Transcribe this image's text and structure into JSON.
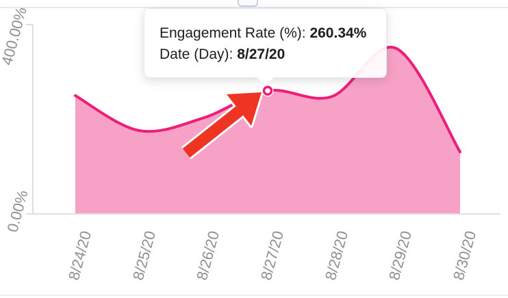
{
  "tooltip": {
    "metric_label": "Engagement Rate (%): ",
    "metric_value": "260.34%",
    "date_label": "Date (Day): ",
    "date_value": "8/27/20"
  },
  "chart_data": {
    "type": "area",
    "title": "",
    "xlabel": "Date (Day)",
    "ylabel": "Engagement Rate (%)",
    "x_labels": [
      "8/24/20",
      "8/25/20",
      "8/26/20",
      "8/27/20",
      "8/28/20",
      "8/29/20",
      "8/30/20"
    ],
    "series": [
      {
        "name": "Engagement Rate (%)",
        "values": [
          250,
          176,
          203,
          260.34,
          248,
          350,
          131
        ]
      }
    ],
    "ylim": [
      0,
      400
    ],
    "y_tick_labels": [
      {
        "label": "400.00%",
        "value": 400
      },
      {
        "label": "0.00%",
        "value": 0
      }
    ],
    "grid": false,
    "legend": "none",
    "highlighted_point": {
      "date": "8/27/20",
      "value": 260.34,
      "label": "260.34%"
    },
    "colors": {
      "line": "#ed1e78",
      "fill": "rgba(237,30,120,0.42)",
      "axis": "#d6d6d6",
      "tick_text": "#8f8f8f",
      "annotation_arrow": "#ee3423",
      "tooltip_text": "#1d1d20"
    }
  }
}
